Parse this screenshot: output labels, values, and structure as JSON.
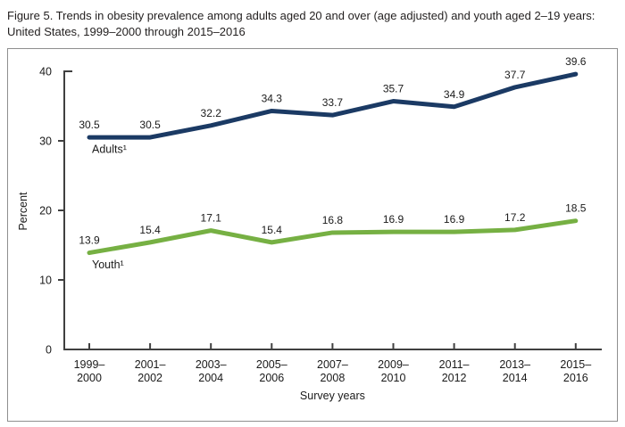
{
  "figure": {
    "title_line1": "Figure 5. Trends in obesity prevalence among adults aged 20 and over (age adjusted) and youth aged 2–19 years:",
    "title_line2": "United States, 1999–2000 through 2015–2016"
  },
  "chart_data": {
    "type": "line",
    "categories": [
      "1999–2000",
      "2001–2002",
      "2003–2004",
      "2005–2006",
      "2007–2008",
      "2009–2010",
      "2011–2012",
      "2013–2014",
      "2015–2016"
    ],
    "series": [
      {
        "name": "Adults¹",
        "color": "#1b3a64",
        "values": [
          30.5,
          30.5,
          32.2,
          34.3,
          33.7,
          35.7,
          34.9,
          37.7,
          39.6
        ]
      },
      {
        "name": "Youth¹",
        "color": "#76b043",
        "values": [
          13.9,
          15.4,
          17.1,
          15.4,
          16.8,
          16.9,
          16.9,
          17.2,
          18.5
        ]
      }
    ],
    "xlabel": "Survey years",
    "ylabel": "Percent",
    "ylim": [
      0,
      40
    ],
    "yticks": [
      0,
      10,
      20,
      30,
      40
    ],
    "grid": false,
    "legend": "inline-series-labels",
    "data_labels_shown": true
  }
}
